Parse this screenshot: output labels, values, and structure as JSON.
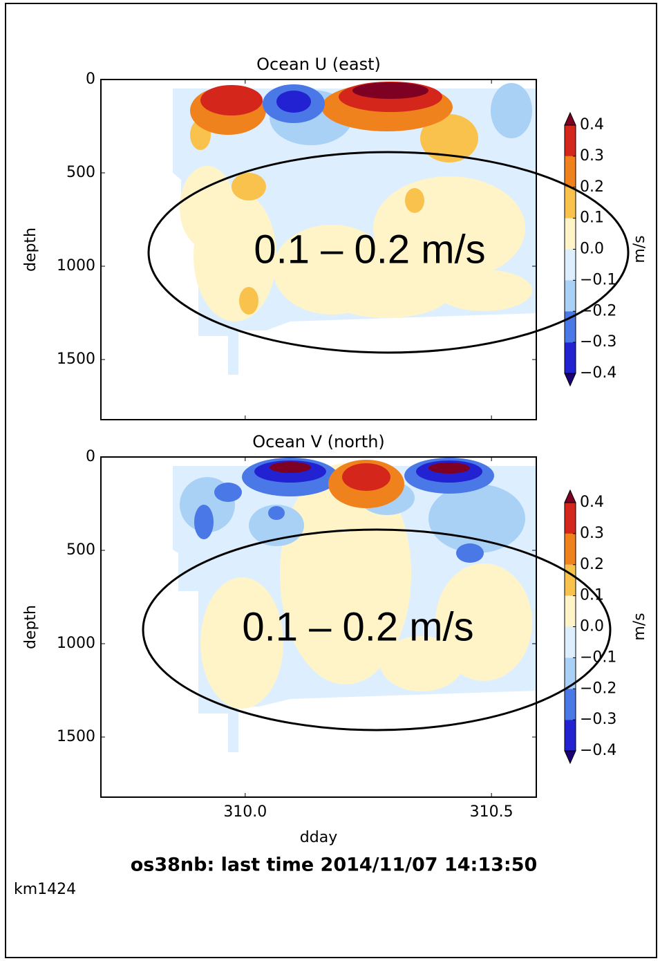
{
  "chart_data": [
    {
      "type": "contour",
      "title": "Ocean U (east)",
      "y_label": "depth",
      "xlim": [
        309.707,
        310.591
      ],
      "xticks": [
        310,
        310.5
      ],
      "ylim": [
        1822,
        0
      ],
      "yticks": [
        0,
        500,
        1000,
        1500
      ],
      "annotation": "0.1 – 0.2 m/s",
      "colorbar": {
        "label": "m/s",
        "clim": [
          -0.4,
          0.4
        ],
        "levels": [
          {
            "value": -0.4,
            "label": "−0.4"
          },
          {
            "value": -0.3,
            "label": "−0.3"
          },
          {
            "value": -0.2,
            "label": "−0.2"
          },
          {
            "value": -0.1,
            "label": "−0.1"
          },
          {
            "value": 0,
            "label": "0.0"
          },
          0.1,
          0.2,
          0.3,
          0.4
        ],
        "colors": [
          "#1c0078",
          "#2222d2",
          "#4a78e6",
          "#a9d0f5",
          "#ddefff",
          "#fff4c8",
          "#f8c24c",
          "#f0821e",
          "#d4261a",
          "#7e0022"
        ]
      }
    },
    {
      "type": "contour",
      "title": "Ocean V (north)",
      "y_label": "depth",
      "x_label": "dday",
      "xlim": [
        309.707,
        310.591
      ],
      "xticks": [
        {
          "value": 310,
          "label": "310.0"
        },
        {
          "value": 310.5,
          "label": "310.5"
        }
      ],
      "ylim": [
        1822,
        0
      ],
      "yticks": [
        0,
        500,
        1000,
        1500
      ],
      "annotation": "0.1 – 0.2 m/s",
      "colorbar": {
        "label": "m/s",
        "clim": [
          -0.4,
          0.4
        ],
        "levels": [
          {
            "value": -0.4,
            "label": "−0.4"
          },
          {
            "value": -0.3,
            "label": "−0.3"
          },
          {
            "value": -0.2,
            "label": "−0.2"
          },
          {
            "value": -0.1,
            "label": "−0.1"
          },
          {
            "value": 0,
            "label": "0.0"
          },
          0.1,
          0.2,
          0.3,
          0.4
        ],
        "colors": [
          "#1c0078",
          "#2222d2",
          "#4a78e6",
          "#a9d0f5",
          "#ddefff",
          "#fff4c8",
          "#f8c24c",
          "#f0821e",
          "#d4261a",
          "#7e0022"
        ]
      }
    }
  ],
  "footer": {
    "title": "os38nb: last time 2014/11/07 14:13:50",
    "cruise": "km1424"
  }
}
